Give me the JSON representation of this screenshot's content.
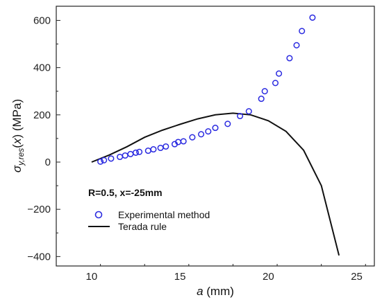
{
  "chart_data": {
    "type": "scatter",
    "xlabel": "a (mm)",
    "ylabel": "σy,res(x) (MPa)",
    "xlim": [
      8,
      26
    ],
    "ylim": [
      -440,
      660
    ],
    "xticks": [
      10,
      15,
      20,
      25
    ],
    "yticks": [
      -400,
      -200,
      0,
      200,
      400,
      600
    ],
    "annotation": "R=0.5, x=-25mm",
    "legend_position": "inside-lower-left",
    "series": [
      {
        "name": "Experimental method",
        "kind": "scatter",
        "marker": "open-circle",
        "color": "#2a2ae0",
        "points": [
          [
            10.5,
            2
          ],
          [
            10.7,
            8
          ],
          [
            11.1,
            15
          ],
          [
            11.6,
            22
          ],
          [
            11.9,
            28
          ],
          [
            12.2,
            34
          ],
          [
            12.5,
            40
          ],
          [
            12.7,
            43
          ],
          [
            13.2,
            48
          ],
          [
            13.5,
            54
          ],
          [
            13.9,
            60
          ],
          [
            14.2,
            66
          ],
          [
            14.7,
            76
          ],
          [
            14.9,
            85
          ],
          [
            15.2,
            88
          ],
          [
            15.7,
            105
          ],
          [
            16.2,
            118
          ],
          [
            16.6,
            130
          ],
          [
            17.0,
            145
          ],
          [
            17.7,
            162
          ],
          [
            18.4,
            195
          ],
          [
            18.9,
            215
          ],
          [
            19.6,
            268
          ],
          [
            19.8,
            300
          ],
          [
            20.4,
            335
          ],
          [
            20.6,
            375
          ],
          [
            21.2,
            440
          ],
          [
            21.6,
            495
          ],
          [
            21.9,
            555
          ],
          [
            22.5,
            612
          ]
        ]
      },
      {
        "name": "Terada rule",
        "kind": "line",
        "color": "#111111",
        "points": [
          [
            10.0,
            0
          ],
          [
            10.5,
            15
          ],
          [
            11.0,
            30
          ],
          [
            12.0,
            65
          ],
          [
            13.0,
            105
          ],
          [
            14.0,
            135
          ],
          [
            15.0,
            160
          ],
          [
            16.0,
            183
          ],
          [
            17.0,
            200
          ],
          [
            18.0,
            207
          ],
          [
            19.0,
            200
          ],
          [
            20.0,
            175
          ],
          [
            21.0,
            130
          ],
          [
            22.0,
            50
          ],
          [
            23.0,
            -100
          ],
          [
            24.0,
            -395
          ]
        ]
      }
    ]
  }
}
